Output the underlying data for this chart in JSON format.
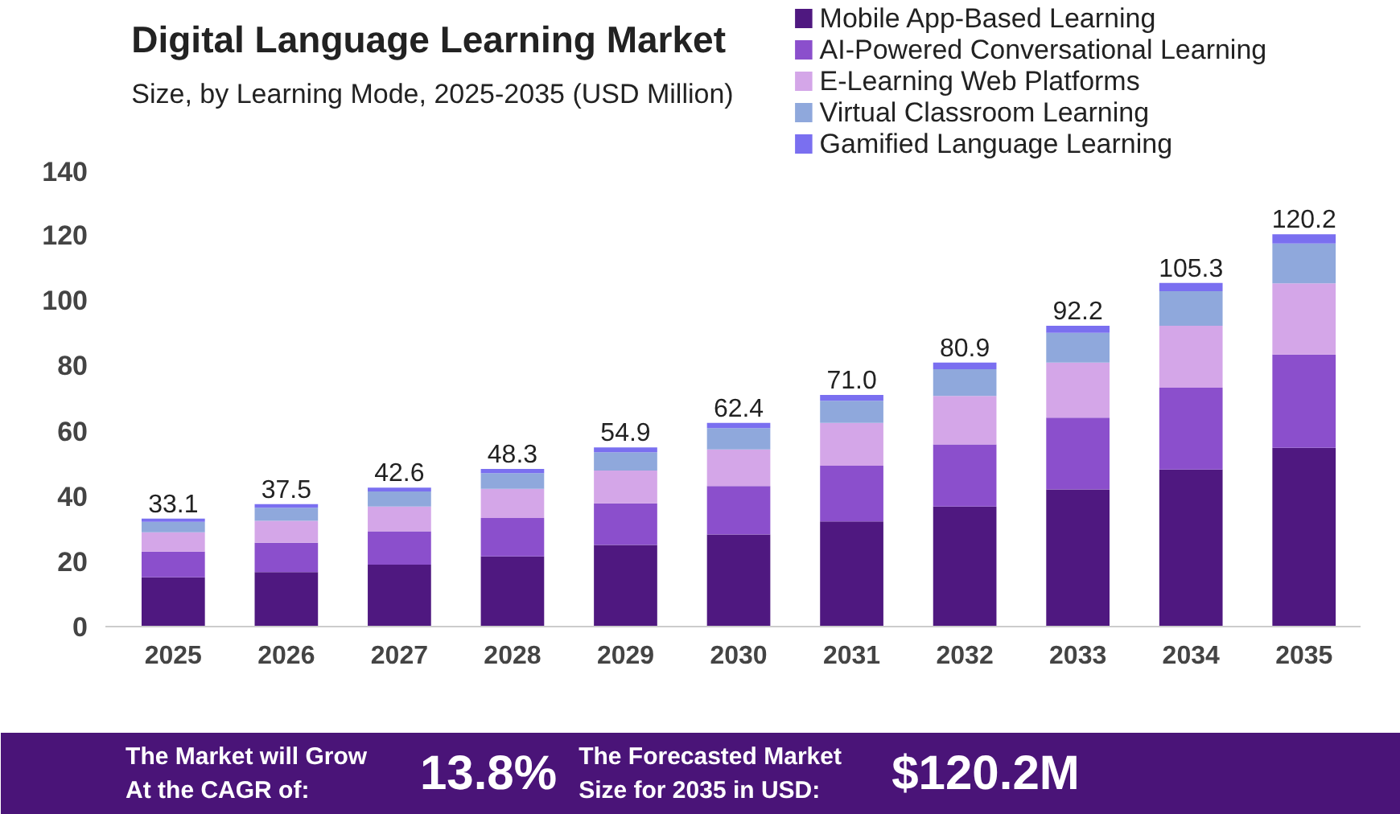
{
  "chart_data": {
    "type": "bar",
    "stacked": true,
    "title": "Digital Language Learning Market",
    "subtitle": "Size, by Learning Mode, 2025-2035 (USD Million)",
    "categories": [
      "2025",
      "2026",
      "2027",
      "2028",
      "2029",
      "2030",
      "2031",
      "2032",
      "2033",
      "2034",
      "2035"
    ],
    "series": [
      {
        "name": "Mobile App-Based Learning",
        "color": "#4f1880",
        "values": [
          15.1,
          16.7,
          19.0,
          21.5,
          25.0,
          28.2,
          32.2,
          36.8,
          42.0,
          48.1,
          54.8
        ]
      },
      {
        "name": "AI-Powered Conversational Learning",
        "color": "#8b4fcc",
        "values": [
          7.9,
          9.0,
          10.2,
          11.8,
          12.8,
          14.9,
          17.1,
          19.0,
          22.0,
          25.1,
          28.6
        ]
      },
      {
        "name": "E-Learning Web Platforms",
        "color": "#d4a6e8",
        "values": [
          5.9,
          6.7,
          7.6,
          8.9,
          10.0,
          11.2,
          13.1,
          14.9,
          16.9,
          19.0,
          21.8
        ]
      },
      {
        "name": "Virtual Classroom Learning",
        "color": "#8fa8dc",
        "values": [
          3.2,
          4.0,
          4.6,
          4.8,
          5.6,
          6.5,
          6.8,
          8.2,
          9.1,
          10.6,
          12.2
        ]
      },
      {
        "name": "Gamified Language Learning",
        "color": "#7a6ff0",
        "values": [
          1.0,
          1.1,
          1.2,
          1.3,
          1.5,
          1.6,
          1.8,
          2.0,
          2.2,
          2.5,
          2.8
        ]
      }
    ],
    "totals": [
      "33.1",
      "37.5",
      "42.6",
      "48.3",
      "54.9",
      "62.4",
      "71.0",
      "80.9",
      "92.2",
      "105.3",
      "120.2"
    ],
    "ylim": [
      0,
      140
    ],
    "yticks": [
      0,
      20,
      40,
      60,
      80,
      100,
      120,
      140
    ],
    "grid": false,
    "legend": "top right",
    "annotations": [
      "The Market will Grow\nAt the CAGR of:",
      "13.8%",
      "The Forecasted Market\nSize for 2035 in USD:",
      "$120.2M"
    ]
  }
}
